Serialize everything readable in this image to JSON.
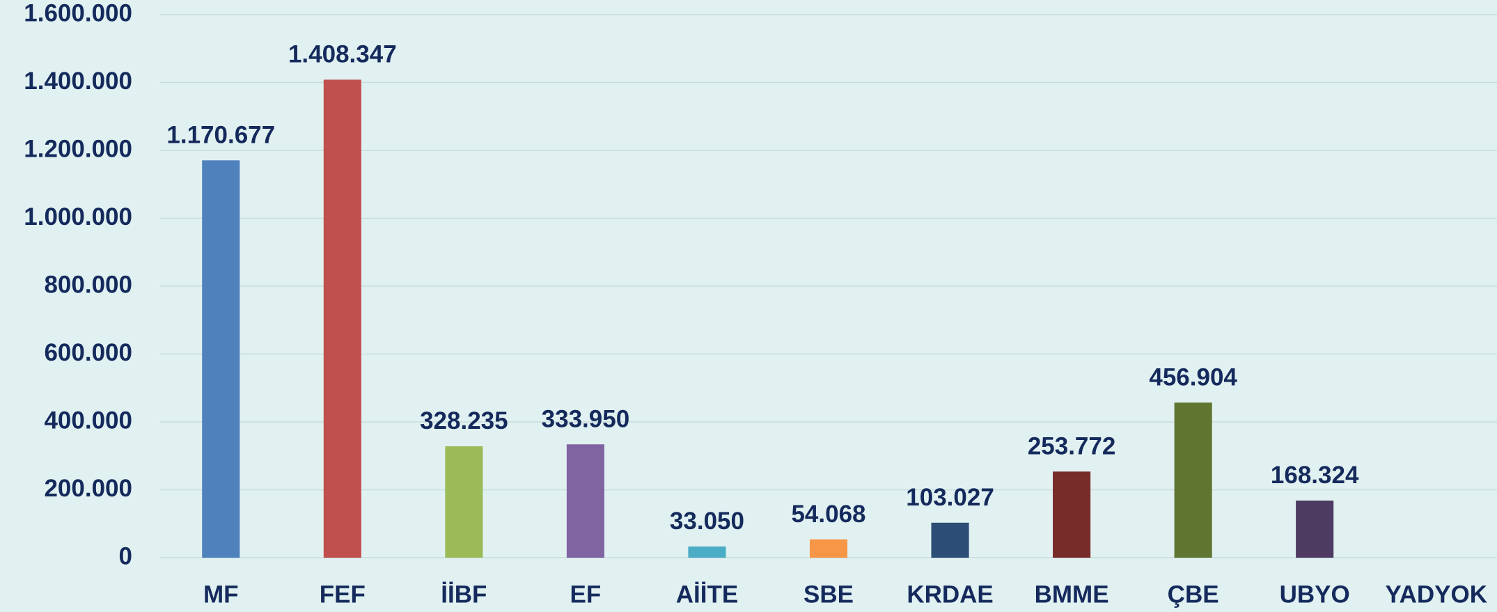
{
  "chart_data": {
    "type": "bar",
    "categories": [
      "MF",
      "FEF",
      "İİBF",
      "EF",
      "AİİTE",
      "SBE",
      "KRDAE",
      "BMME",
      "ÇBE",
      "UBYO",
      "YADYOK"
    ],
    "values": [
      1170677,
      1408347,
      328235,
      333950,
      33050,
      54068,
      103027,
      253772,
      456904,
      168324,
      null
    ],
    "value_labels": [
      "1.170.677",
      "1.408.347",
      "328.235",
      "333.950",
      "33.050",
      "54.068",
      "103.027",
      "253.772",
      "456.904",
      "168.324",
      null
    ],
    "colors": [
      "#4f81bd",
      "#c0504d",
      "#9bbb59",
      "#8064a2",
      "#4bacc6",
      "#f79646",
      "#2c4d75",
      "#772c2a",
      "#5f7530",
      "#4d3b62",
      null
    ],
    "ylim": [
      0,
      1600000
    ],
    "yticks": [
      0,
      {
        "value": 200000,
        "label": "200.000"
      },
      {
        "value": 400000,
        "label": "400.000"
      },
      {
        "value": 600000,
        "label": "600.000"
      },
      {
        "value": 800000,
        "label": "800.000"
      },
      {
        "value": 1000000,
        "label": "1.000.000"
      },
      {
        "value": 1200000,
        "label": "1.200.000"
      },
      {
        "value": 1400000,
        "label": "1.400.000"
      },
      {
        "value": 1600000,
        "label": "1.600.000"
      }
    ],
    "grid": true
  }
}
